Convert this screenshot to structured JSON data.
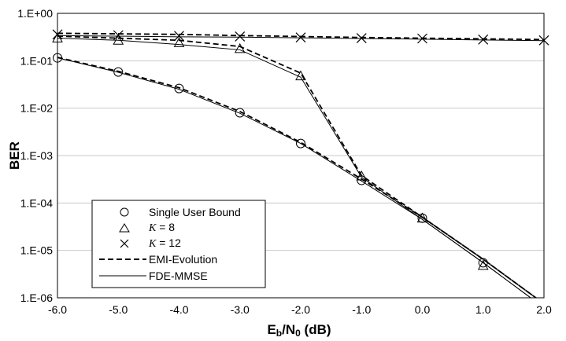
{
  "chart_data": {
    "type": "line",
    "xlabel": "Eb/N0 (dB)",
    "xlabel_main": "E",
    "xlabel_sub1": "b",
    "xlabel_mid": "/N",
    "xlabel_sub2": "0",
    "xlabel_tail": " (dB)",
    "ylabel": "BER",
    "yscale": "log",
    "xlim": [
      -6,
      2
    ],
    "ylim": [
      1e-06,
      1
    ],
    "grid": true,
    "legend_placement": "bottom-left",
    "x_ticks": [
      "-6.0",
      "-5.0",
      "-4.0",
      "-3.0",
      "-2.0",
      "-1.0",
      "0.0",
      "1.0",
      "2.0"
    ],
    "y_ticks": [
      "1.E-06",
      "1.E-05",
      "1.E-04",
      "1.E-03",
      "1.E-02",
      "1.E-01",
      "1.E+00"
    ],
    "series": [
      {
        "name": "Single User Bound",
        "marker": "circle",
        "x": [
          -6,
          -5,
          -4,
          -3,
          -2,
          -1,
          0,
          1
        ],
        "y": [
          0.115,
          0.058,
          0.026,
          0.008,
          0.0018,
          0.0003,
          4.8e-05,
          5.5e-06
        ]
      },
      {
        "name": "K = 8",
        "name_prefix": "K",
        "name_suffix": " = 8",
        "marker": "triangle",
        "x": [
          -6,
          -5,
          -4,
          -3,
          -2,
          -1,
          0,
          1
        ],
        "y": [
          0.3,
          0.27,
          0.24,
          0.18,
          0.048,
          0.00037,
          4.8e-05,
          4.8e-06
        ]
      },
      {
        "name": "K = 12",
        "name_prefix": "K",
        "name_suffix": " = 12",
        "marker": "x",
        "x": [
          -6,
          -5,
          -4,
          -3,
          -2,
          -1,
          0,
          1,
          2
        ],
        "y": [
          0.36,
          0.345,
          0.335,
          0.325,
          0.31,
          0.3,
          0.295,
          0.28,
          0.27
        ]
      },
      {
        "name": "EMI-Evolution",
        "style": "dashed",
        "lines": [
          {
            "x": [
              -6,
              -5,
              -4,
              -3,
              -2,
              -1,
              0,
              1,
              2
            ],
            "y": [
              0.118,
              0.06,
              0.027,
              0.0085,
              0.0019,
              0.00032,
              5e-05,
              6.5e-06,
              7.5e-07
            ]
          },
          {
            "x": [
              -6,
              -5,
              -4,
              -3,
              -2,
              -1,
              0,
              1,
              2
            ],
            "y": [
              0.33,
              0.3,
              0.27,
              0.2,
              0.055,
              0.00038,
              5e-05,
              6.5e-06,
              7.5e-07
            ]
          },
          {
            "x": [
              -6,
              -5,
              -4,
              -3,
              -2,
              -1,
              0,
              1,
              2
            ],
            "y": [
              0.38,
              0.37,
              0.36,
              0.34,
              0.325,
              0.31,
              0.3,
              0.29,
              0.28
            ]
          }
        ]
      },
      {
        "name": "FDE-MMSE",
        "style": "solid",
        "lines": [
          {
            "x": [
              -6,
              -5,
              -4,
              -3,
              -2,
              -1,
              0,
              1,
              2
            ],
            "y": [
              0.115,
              0.057,
              0.025,
              0.0078,
              0.0018,
              0.00029,
              4.5e-05,
              5.5e-06,
              6.2e-07
            ]
          },
          {
            "x": [
              -6,
              -5,
              -4,
              -3,
              -2,
              -1,
              0,
              1,
              2
            ],
            "y": [
              0.3,
              0.27,
              0.22,
              0.17,
              0.045,
              0.00035,
              4.5e-05,
              5.5e-06,
              6.2e-07
            ]
          },
          {
            "x": [
              -6,
              -5,
              -4,
              -3,
              -2,
              -1,
              0,
              1,
              2
            ],
            "y": [
              0.34,
              0.33,
              0.32,
              0.315,
              0.305,
              0.295,
              0.285,
              0.275,
              0.265
            ]
          }
        ]
      }
    ]
  }
}
